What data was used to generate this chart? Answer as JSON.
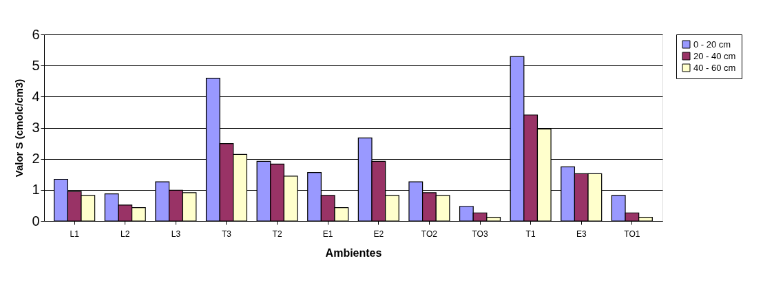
{
  "chart_data": {
    "type": "bar",
    "xlabel": "Ambientes",
    "ylabel": "Valor S (cmolc/cm3)",
    "categories": [
      "L1",
      "L2",
      "L3",
      "T3",
      "T2",
      "E1",
      "E2",
      "TO2",
      "TO3",
      "T1",
      "E3",
      "TO1"
    ],
    "series": [
      {
        "name": "0 - 20 cm",
        "color": "#9999ff",
        "values": [
          1.34,
          0.87,
          1.26,
          4.59,
          1.92,
          1.56,
          2.67,
          1.26,
          0.47,
          5.29,
          1.74,
          0.82
        ]
      },
      {
        "name": "20 - 40 cm",
        "color": "#993366",
        "values": [
          0.95,
          0.51,
          0.99,
          2.49,
          1.83,
          0.82,
          1.92,
          0.91,
          0.26,
          3.41,
          1.52,
          0.26
        ]
      },
      {
        "name": "40 - 60 cm",
        "color": "#ffffcc",
        "values": [
          0.82,
          0.43,
          0.91,
          2.14,
          1.44,
          0.43,
          0.82,
          0.82,
          0.12,
          2.96,
          1.52,
          0.12
        ]
      }
    ],
    "ylim": [
      0,
      6
    ],
    "yticks": [
      0,
      1,
      2,
      3,
      4,
      5,
      6
    ],
    "grid": "y",
    "legend": "right"
  }
}
